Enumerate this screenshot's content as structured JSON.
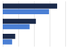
{
  "chart_data": {
    "type": "bar",
    "orientation": "horizontal",
    "categories": [
      null,
      null,
      null
    ],
    "series": [
      {
        "color": "#1b2a4a",
        "values": [
          87,
          53,
          20
        ]
      },
      {
        "color": "#4a7fd4",
        "values": [
          74,
          43,
          15
        ]
      }
    ],
    "xlim": [
      0,
      100
    ],
    "xticks": [
      0,
      25,
      50,
      75,
      100
    ],
    "grid": true,
    "tick_labels": false
  }
}
